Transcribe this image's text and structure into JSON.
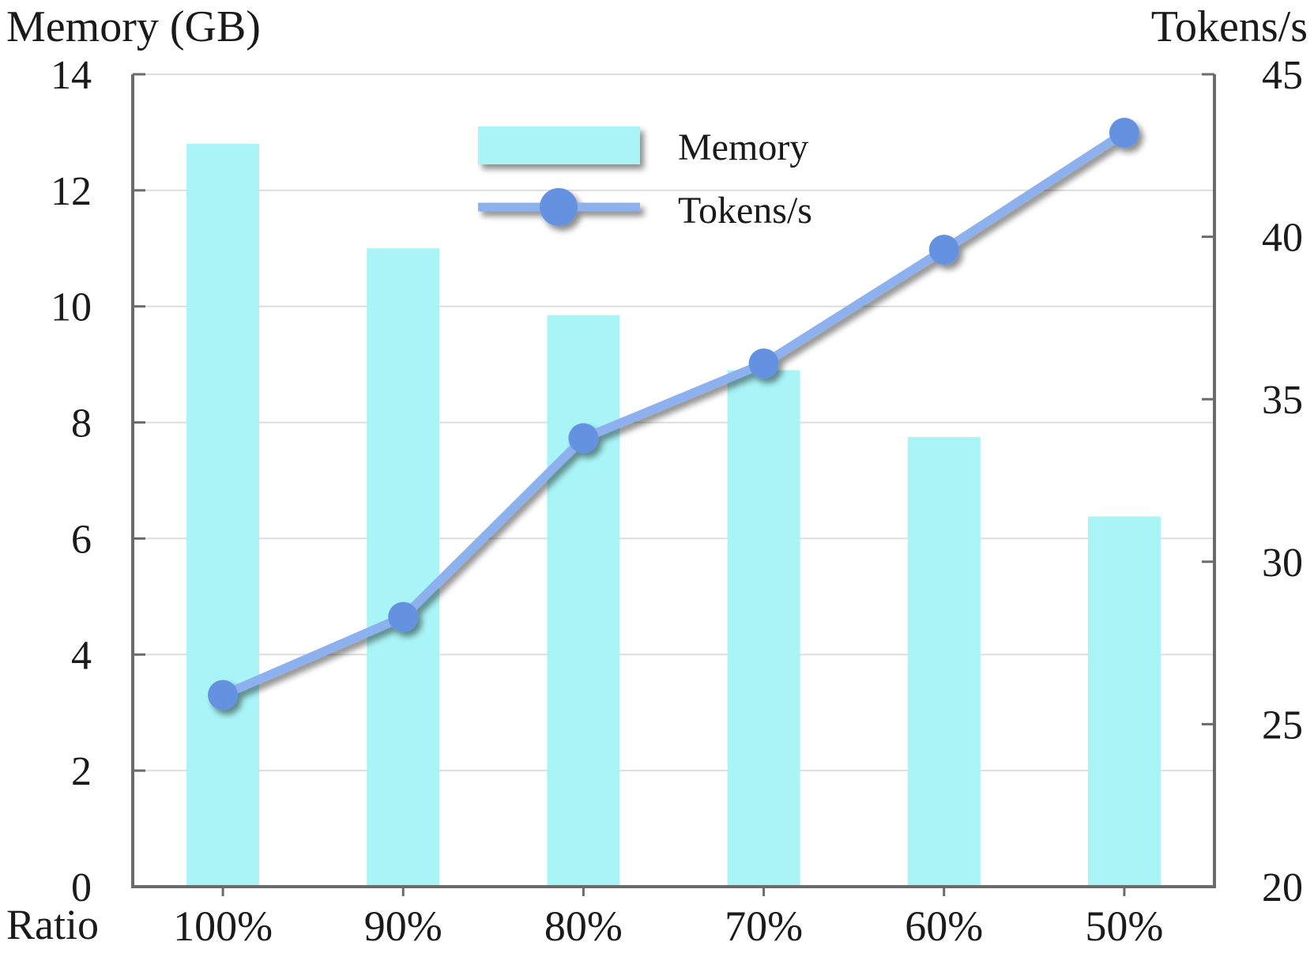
{
  "chart_data": {
    "type": "bar",
    "title": "",
    "xlabel": "Ratio",
    "ylabel": "Memory (GB)",
    "y2label": "Tokens/s",
    "categories": [
      "100%",
      "90%",
      "80%",
      "70%",
      "60%",
      "50%"
    ],
    "ylim": [
      0,
      14
    ],
    "yticks": [
      "0",
      "2",
      "4",
      "6",
      "8",
      "10",
      "12",
      "14"
    ],
    "y2lim": [
      20,
      45
    ],
    "y2ticks": [
      "20",
      "25",
      "30",
      "35",
      "40",
      "45"
    ],
    "grid": true,
    "legend_position": "top-center",
    "series": [
      {
        "name": "Memory",
        "type": "bar",
        "axis": "left",
        "color": "#a8f4f6",
        "values": [
          12.8,
          11.0,
          9.85,
          8.9,
          7.75,
          6.38
        ]
      },
      {
        "name": "Tokens/s",
        "type": "line",
        "axis": "right",
        "line_color": "#8db1ef",
        "marker_color": "#6592e0",
        "values": [
          25.9,
          28.3,
          33.8,
          36.1,
          39.6,
          43.2
        ]
      }
    ]
  }
}
